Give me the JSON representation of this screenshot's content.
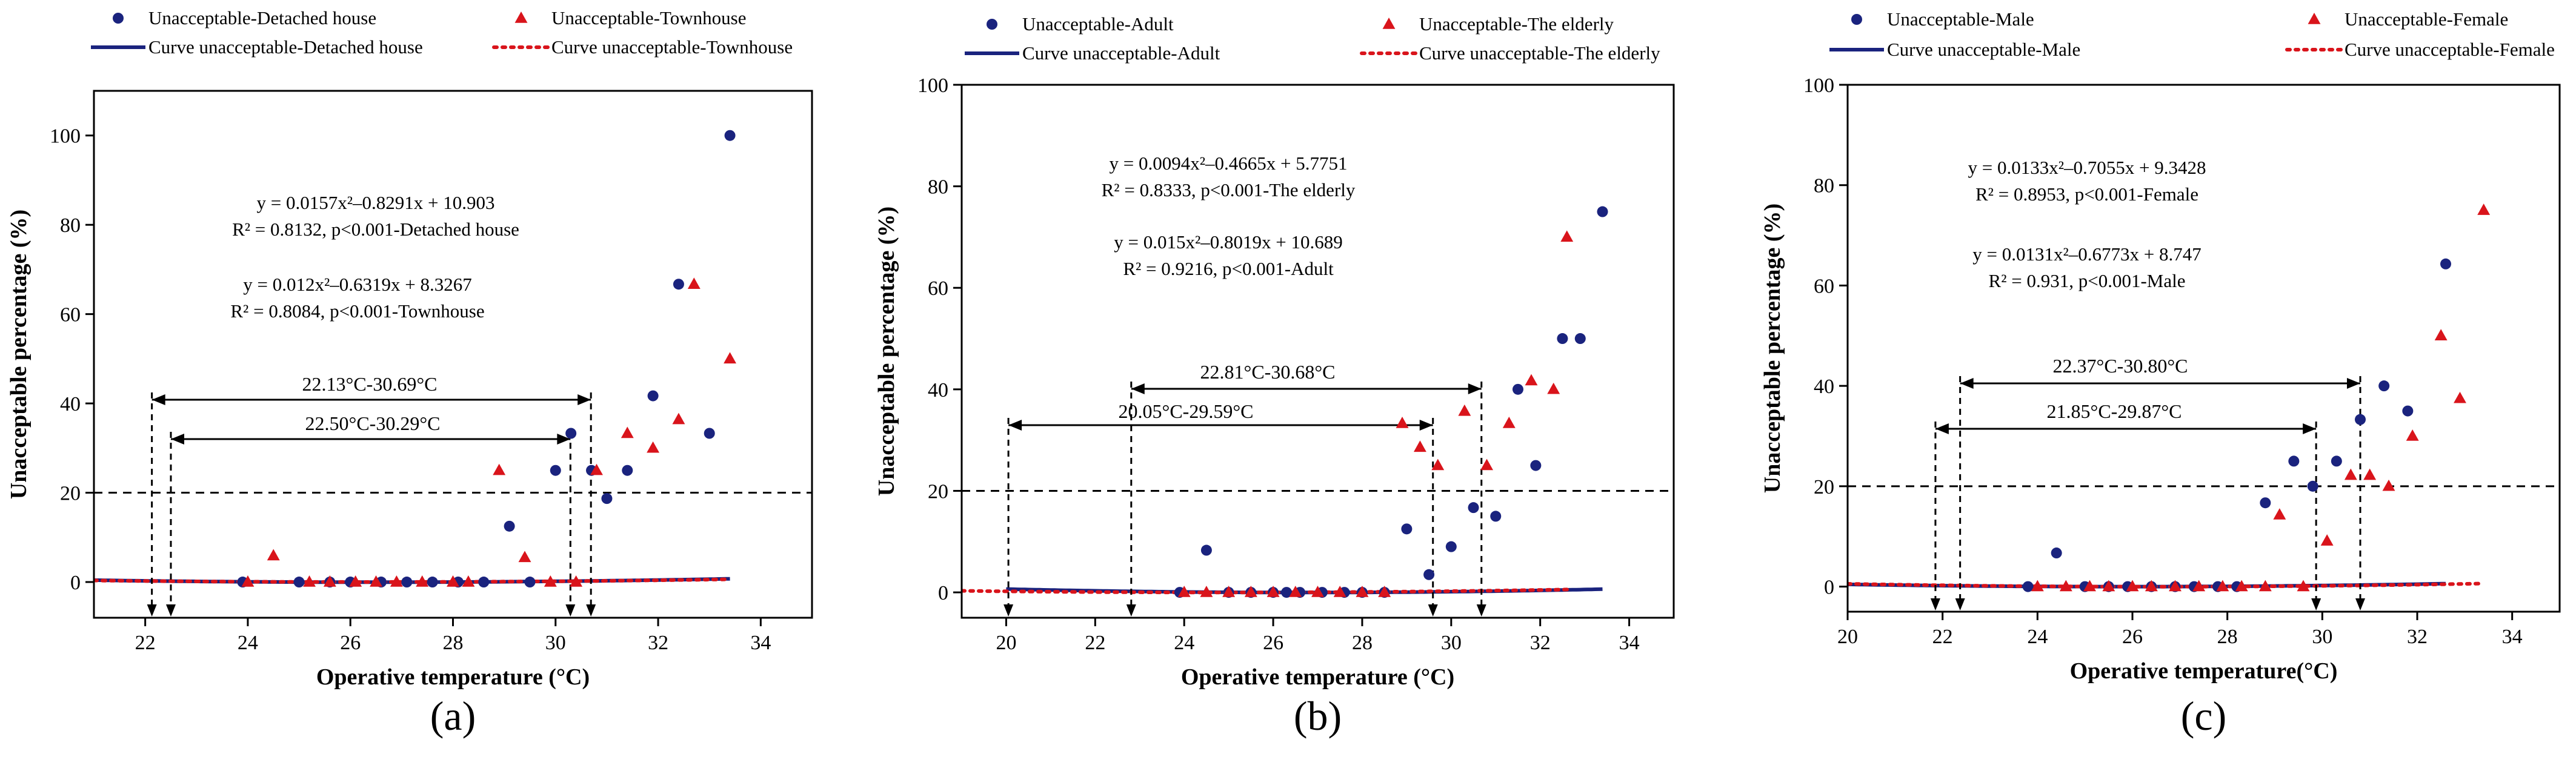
{
  "figure": {
    "panels": [
      "a",
      "b",
      "c"
    ]
  },
  "colors": {
    "series1": "#1a237e",
    "series2": "#d9141b",
    "threshold": "#000000",
    "arrow": "#000000"
  },
  "chart_data": [
    {
      "type": "scatter",
      "panel_label": "(a)",
      "xlabel": "Operative temperature (°C)",
      "ylabel": "Unacceptable percentage (%)",
      "xlim": [
        21,
        35
      ],
      "ylim": [
        -8,
        110
      ],
      "xticks": [
        22,
        24,
        26,
        28,
        30,
        32,
        34
      ],
      "yticks": [
        0,
        20,
        40,
        60,
        80,
        100
      ],
      "threshold": 20,
      "legend": {
        "s1_points": "Unacceptable-Detached house",
        "s2_points": "Unacceptable-Townhouse",
        "s1_curve": "Curve unacceptable-Detached house",
        "s2_curve": "Curve unacceptable-Townhouse"
      },
      "series": [
        {
          "name": "Unacceptable-Detached house",
          "marker": "circle",
          "curve": {
            "a": 0.0157,
            "b": -0.8291,
            "c": 10.903
          },
          "curve_range": [
            21,
            33.4
          ],
          "x": [
            23.9,
            25,
            25.6,
            26,
            26.6,
            27.1,
            27.6,
            28.1,
            28.6,
            29.1,
            29.5,
            30,
            30.3,
            30.7,
            31,
            31.4,
            31.9,
            32.4,
            33,
            33.4
          ],
          "y": [
            0,
            0,
            0,
            0,
            0,
            0,
            0,
            0,
            0,
            12.5,
            0,
            25,
            33.3,
            25,
            18.7,
            25,
            41.7,
            66.7,
            33.3,
            100
          ]
        },
        {
          "name": "Unacceptable-Townhouse",
          "marker": "triangle",
          "curve": {
            "a": 0.012,
            "b": -0.6319,
            "c": 8.3267
          },
          "curve_range": [
            21,
            33.4
          ],
          "x": [
            24,
            24.5,
            25.2,
            25.6,
            26.1,
            26.5,
            26.9,
            27.4,
            28,
            28.3,
            28.9,
            29.4,
            29.9,
            30.4,
            30.8,
            31.4,
            31.9,
            32.4,
            32.7,
            33.4
          ],
          "y": [
            0,
            5.9,
            0,
            0,
            0,
            0,
            0,
            0,
            0,
            0,
            25,
            5.5,
            0,
            0,
            25,
            33.3,
            30,
            36.4,
            66.7,
            50
          ]
        }
      ],
      "equations": [
        {
          "line1": "y = 0.0157x²–0.8291x + 10.903",
          "line2": "R² = 0.8132, p<0.001-Detached house"
        },
        {
          "line1": "y = 0.012x²–0.6319x + 8.3267",
          "line2": "R² = 0.8084, p<0.001-Townhouse"
        }
      ],
      "ranges": [
        {
          "label": "22.13°C-30.69°C",
          "from": 22.13,
          "to": 30.69
        },
        {
          "label": "22.50°C-30.29°C",
          "from": 22.5,
          "to": 30.29
        }
      ]
    },
    {
      "type": "scatter",
      "panel_label": "(b)",
      "xlabel": "Operative temperature (°C)",
      "ylabel": "Unacceptable percentage (%)",
      "xlim": [
        19,
        35
      ],
      "ylim": [
        -5,
        100
      ],
      "xticks": [
        20,
        22,
        24,
        26,
        28,
        30,
        32,
        34
      ],
      "yticks": [
        0,
        20,
        40,
        60,
        80,
        100
      ],
      "threshold": 20,
      "legend": {
        "s1_points": "Unacceptable-Adult",
        "s2_points": "Unacceptable-The elderly",
        "s1_curve": "Curve unacceptable-Adult",
        "s2_curve": "Curve unacceptable-The elderly"
      },
      "series": [
        {
          "name": "Unacceptable-Adult",
          "marker": "circle",
          "curve": {
            "a": 0.015,
            "b": -0.8019,
            "c": 10.689
          },
          "curve_range": [
            20,
            33.4
          ],
          "x": [
            23.9,
            24.5,
            25,
            25.5,
            26,
            26.3,
            26.6,
            27.1,
            27.6,
            28,
            28.5,
            29,
            29.5,
            30,
            30.5,
            31,
            31.5,
            31.9,
            32.5,
            32.9,
            33.4
          ],
          "y": [
            0,
            8.3,
            0,
            0,
            0,
            0,
            0,
            0,
            0,
            0,
            0,
            12.5,
            3.5,
            9,
            16.7,
            15,
            40,
            25,
            50,
            50,
            75
          ]
        },
        {
          "name": "Unacceptable-The elderly",
          "marker": "triangle",
          "curve": {
            "a": 0.0094,
            "b": -0.4665,
            "c": 5.7751
          },
          "curve_range": [
            19,
            32.7
          ],
          "x": [
            24,
            24.5,
            25,
            25.5,
            26,
            26.5,
            27,
            27.5,
            28,
            28.5,
            28.9,
            29.3,
            29.7,
            30.3,
            30.8,
            31.3,
            31.8,
            32.3,
            32.6
          ],
          "y": [
            0,
            0,
            0,
            0,
            0,
            0,
            0,
            0,
            0,
            0,
            33.3,
            28.6,
            25,
            35.7,
            25,
            33.3,
            41.7,
            40,
            70
          ]
        }
      ],
      "equations": [
        {
          "line1": "y = 0.0094x²–0.4665x + 5.7751",
          "line2": "R² = 0.8333, p<0.001-The elderly"
        },
        {
          "line1": "y = 0.015x²–0.8019x + 10.689",
          "line2": "R² = 0.9216, p<0.001-Adult"
        }
      ],
      "ranges": [
        {
          "label": "22.81°C-30.68°C",
          "from": 22.81,
          "to": 30.68
        },
        {
          "label": "20.05°C-29.59°C",
          "from": 20.05,
          "to": 29.59
        }
      ]
    },
    {
      "type": "scatter",
      "panel_label": "(c)",
      "xlabel": "Operative temperature(°C)",
      "ylabel": "Unacceptable percentage (%)",
      "xlim": [
        20,
        35
      ],
      "ylim": [
        -5,
        100
      ],
      "xticks": [
        20,
        22,
        24,
        26,
        28,
        30,
        32,
        34
      ],
      "yticks": [
        0,
        20,
        40,
        60,
        80,
        100
      ],
      "threshold": 20,
      "legend": {
        "s1_points": "Unacceptable-Male",
        "s2_points": "Unacceptable-Female",
        "s1_curve": "Curve unacceptable-Male",
        "s2_curve": "Curve unacceptable-Female"
      },
      "series": [
        {
          "name": "Unacceptable-Male",
          "marker": "circle",
          "curve": {
            "a": 0.0131,
            "b": -0.6773,
            "c": 8.747
          },
          "curve_range": [
            20,
            32.6
          ],
          "x": [
            23.8,
            24.4,
            25,
            25.5,
            25.9,
            26.4,
            26.9,
            27.3,
            27.8,
            28.2,
            28.8,
            29.4,
            29.8,
            30.3,
            30.8,
            31.3,
            31.8,
            32.6
          ],
          "y": [
            0,
            6.7,
            0,
            0,
            0,
            0,
            0,
            0,
            0,
            0,
            16.7,
            25,
            20,
            25,
            33.3,
            40,
            35,
            64.3
          ]
        },
        {
          "name": "Unacceptable-Female",
          "marker": "triangle",
          "curve": {
            "a": 0.0133,
            "b": -0.7055,
            "c": 9.3428
          },
          "curve_range": [
            20,
            33.4
          ],
          "x": [
            24,
            24.6,
            25.1,
            25.5,
            26,
            26.4,
            26.9,
            27.4,
            27.9,
            28.3,
            28.8,
            29.1,
            29.6,
            30.1,
            30.6,
            31,
            31.4,
            31.9,
            32.5,
            32.9,
            33.4
          ],
          "y": [
            0,
            0,
            0,
            0,
            0,
            0,
            0,
            0,
            0,
            0,
            0,
            14.3,
            0,
            9.1,
            22.2,
            22.2,
            20,
            30,
            50,
            37.5,
            75
          ]
        }
      ],
      "equations": [
        {
          "line1": "y = 0.0133x²–0.7055x + 9.3428",
          "line2": "R² = 0.8953, p<0.001-Female"
        },
        {
          "line1": "y = 0.0131x²–0.6773x + 8.747",
          "line2": "R² = 0.931, p<0.001-Male"
        }
      ],
      "ranges": [
        {
          "label": "22.37°C-30.80°C",
          "from": 22.37,
          "to": 30.8
        },
        {
          "label": "21.85°C-29.87°C",
          "from": 21.85,
          "to": 29.87
        }
      ]
    }
  ]
}
